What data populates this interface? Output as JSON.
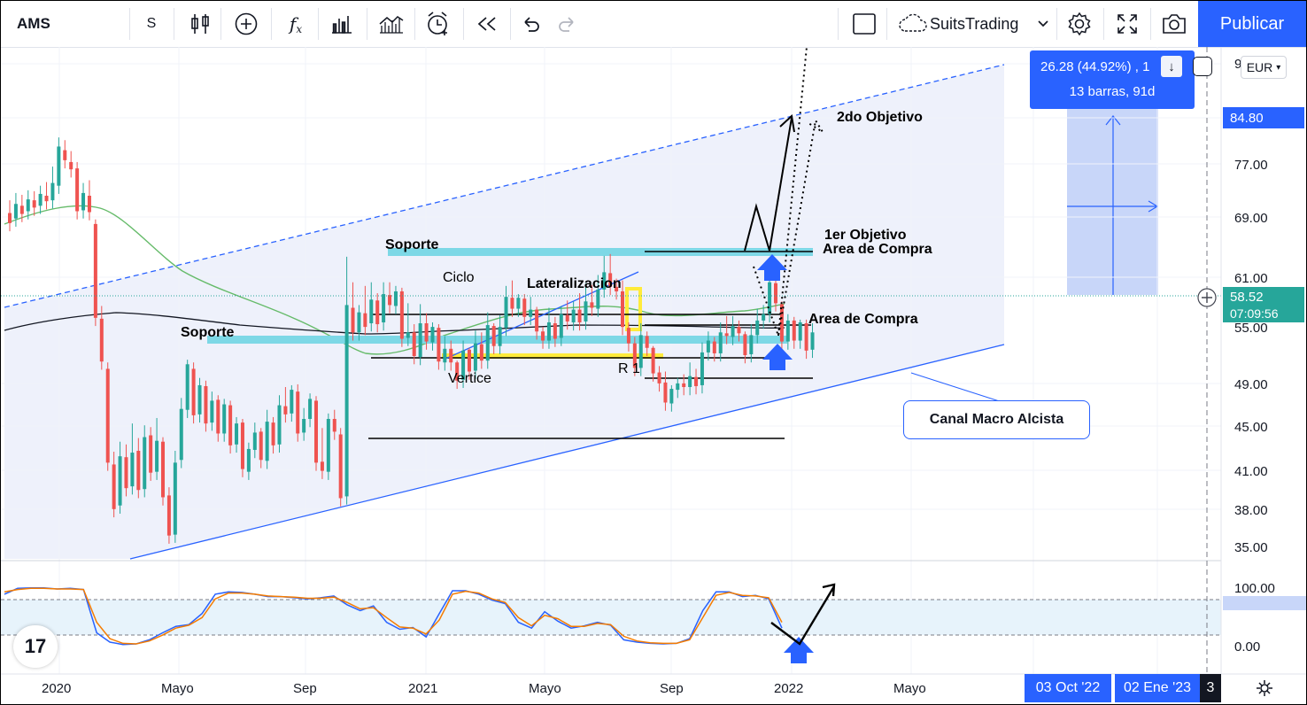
{
  "toolbar": {
    "symbol": "AMS",
    "resolution": "S",
    "brand": "SuitsTrading",
    "publish_label": "Publicar",
    "icons": [
      "bar-style-icon",
      "add-symbol-icon",
      "indicators-icon",
      "templates-icon",
      "compare-icon",
      "alert-icon",
      "replay-icon",
      "undo-icon",
      "redo-icon",
      "layout-icon",
      "cloud-icon",
      "settings-icon",
      "fullscreen-icon",
      "snapshot-icon"
    ]
  },
  "measure": {
    "line1": "26.28 (44.92%) , 1",
    "line2": "13 barras, 91d"
  },
  "currency": "EUR",
  "price_axis": {
    "ticks": [
      "9",
      "77.00",
      "69.00",
      "61.00",
      "55.00",
      "49.00",
      "45.00",
      "41.00",
      "38.00",
      "35.00"
    ],
    "target_tag": "84.80",
    "last_price": "58.52",
    "countdown": "07:09:56"
  },
  "osc_axis": {
    "ticks": [
      "100.00",
      "0.00"
    ]
  },
  "time_axis": {
    "ticks": [
      "2020",
      "Mayo",
      "Sep",
      "2021",
      "Mayo",
      "Sep",
      "2022",
      "Mayo"
    ],
    "range_start": "03 Oct '22",
    "range_end": "02 Ene '23",
    "range_tail": "3"
  },
  "annotations": {
    "objetivo2": "2do Objetivo",
    "objetivo1": "1er Objetivo",
    "area_compra_1": "Area de Compra",
    "area_compra_2": "Area de Compra",
    "soporte_1": "Soporte",
    "soporte_2": "Soporte",
    "ciclo": "Ciclo",
    "lateralizacion": "Lateralizacion",
    "vertice": "Vertice",
    "r1": "R 1",
    "canal": "Canal Macro Alcista"
  },
  "logo": "17",
  "colors": {
    "up": "#26a69a",
    "down": "#ef5350",
    "accent": "#2962ff",
    "band": "#7dd8e6",
    "yellow": "#ffeb3b",
    "ma_green": "#66bb6a"
  },
  "chart_data": {
    "type": "candlestick",
    "ylim": [
      33,
      95
    ],
    "candles": [
      [
        71.6,
        70.5,
        73.0
      ],
      [
        71.0,
        72.6,
        73.8
      ],
      [
        72.4,
        71.5,
        73.6
      ],
      [
        71.8,
        73.1,
        74.1
      ],
      [
        73.0,
        72.2,
        74.0
      ],
      [
        72.4,
        73.7,
        74.6
      ],
      [
        73.5,
        72.9,
        75.0
      ],
      [
        73.0,
        74.9,
        76.7
      ],
      [
        74.6,
        78.9,
        79.9
      ],
      [
        78.5,
        77.4,
        79.6
      ],
      [
        77.2,
        76.4,
        78.4
      ],
      [
        76.5,
        71.8,
        77.2
      ],
      [
        71.9,
        73.8,
        74.9
      ],
      [
        73.5,
        71.7,
        75.2
      ],
      [
        70.4,
        60.1,
        70.9
      ],
      [
        60.0,
        55.3,
        61.4
      ],
      [
        54.5,
        44.2,
        55.2
      ],
      [
        44.0,
        39.1,
        45.4
      ],
      [
        39.5,
        44.9,
        46.5
      ],
      [
        44.8,
        41.4,
        46.2
      ],
      [
        41.6,
        45.3,
        48.5
      ],
      [
        45.5,
        41.2,
        46.9
      ],
      [
        41.3,
        47.0,
        48.3
      ],
      [
        47.2,
        43.1,
        48.1
      ],
      [
        43.2,
        46.6,
        49.1
      ],
      [
        46.5,
        40.4,
        47.0
      ],
      [
        40.6,
        36.2,
        41.5
      ],
      [
        36.3,
        44.2,
        45.5
      ],
      [
        44.5,
        50.1,
        51.3
      ],
      [
        50.0,
        55.0,
        55.5
      ],
      [
        54.5,
        49.4,
        55.2
      ],
      [
        49.5,
        52.7,
        53.5
      ],
      [
        52.6,
        48.5,
        53.2
      ],
      [
        48.6,
        51.0,
        52.0
      ],
      [
        51.1,
        47.4,
        51.6
      ],
      [
        47.4,
        50.6,
        51.2
      ],
      [
        50.5,
        46.1,
        51.0
      ],
      [
        46.2,
        48.5,
        49.2
      ],
      [
        48.6,
        43.5,
        49.0
      ],
      [
        43.2,
        45.7,
        46.4
      ],
      [
        45.6,
        47.5,
        48.6
      ],
      [
        47.6,
        44.5,
        48.0
      ],
      [
        44.4,
        48.7,
        50.0
      ],
      [
        48.6,
        46.1,
        49.2
      ],
      [
        46.2,
        50.5,
        51.6
      ],
      [
        50.4,
        49.5,
        52.5
      ],
      [
        49.6,
        52.2,
        52.7
      ],
      [
        52.0,
        47.4,
        52.8
      ],
      [
        47.5,
        49.0,
        50.2
      ],
      [
        49.0,
        51.2,
        51.8
      ],
      [
        51.0,
        44.2,
        51.5
      ],
      [
        44.3,
        43.3,
        48.0
      ],
      [
        43.2,
        49.0,
        49.6
      ],
      [
        49.0,
        47.6,
        50.0
      ],
      [
        47.3,
        40.3,
        48.0
      ],
      [
        40.5,
        61.5,
        66.8
      ],
      [
        61.2,
        58.5,
        64.0
      ],
      [
        58.5,
        60.7,
        61.5
      ],
      [
        60.6,
        59.1,
        63.6
      ],
      [
        59.5,
        62.1,
        64.0
      ],
      [
        62.0,
        59.4,
        62.8
      ],
      [
        59.6,
        62.7,
        64.0
      ],
      [
        62.6,
        61.5,
        64.0
      ],
      [
        61.4,
        63.0,
        63.6
      ],
      [
        63.0,
        57.8,
        63.4
      ],
      [
        57.9,
        58.5,
        61.7
      ],
      [
        58.5,
        55.9,
        59.4
      ],
      [
        55.8,
        59.5,
        61.6
      ],
      [
        59.5,
        57.5,
        60.6
      ],
      [
        57.4,
        59.1,
        59.6
      ],
      [
        59.0,
        55.3,
        59.4
      ],
      [
        55.2,
        56.7,
        58.1
      ],
      [
        56.7,
        55.2,
        57.6
      ],
      [
        55.2,
        53.2,
        55.4
      ],
      [
        53.3,
        56.5,
        57.6
      ],
      [
        56.6,
        54.2,
        56.8
      ],
      [
        54.3,
        57.3,
        58.7
      ],
      [
        57.2,
        55.4,
        58.5
      ],
      [
        55.4,
        59.3,
        60.7
      ],
      [
        59.2,
        57.0,
        59.5
      ],
      [
        57.0,
        59.1,
        60.4
      ],
      [
        59.0,
        62.4,
        63.6
      ],
      [
        62.3,
        61.1,
        64.2
      ],
      [
        61.1,
        62.3,
        62.7
      ],
      [
        62.2,
        60.2,
        62.7
      ],
      [
        60.2,
        61.0,
        62.4
      ],
      [
        61.0,
        58.6,
        61.3
      ],
      [
        58.6,
        57.6,
        59.1
      ],
      [
        57.6,
        59.6,
        61.2
      ],
      [
        59.5,
        57.8,
        60.2
      ],
      [
        57.9,
        60.5,
        61.4
      ],
      [
        60.4,
        59.7,
        62.0
      ],
      [
        59.6,
        61.0,
        61.9
      ],
      [
        61.0,
        59.6,
        62.8
      ],
      [
        59.7,
        61.9,
        63.9
      ],
      [
        61.8,
        61.2,
        63.7
      ],
      [
        61.1,
        63.2,
        64.8
      ],
      [
        63.2,
        65.1,
        66.9
      ],
      [
        65.0,
        63.5,
        67.1
      ],
      [
        63.5,
        63.0,
        64.4
      ],
      [
        63.0,
        59.1,
        64.2
      ],
      [
        59.0,
        57.3,
        59.6
      ],
      [
        57.3,
        54.6,
        58.0
      ],
      [
        54.6,
        58.2,
        59.5
      ],
      [
        58.1,
        56.8,
        58.6
      ],
      [
        56.8,
        54.0,
        57.0
      ],
      [
        54.1,
        52.9,
        54.8
      ],
      [
        53.0,
        50.8,
        54.2
      ],
      [
        50.7,
        52.3,
        52.7
      ],
      [
        52.2,
        52.9,
        53.5
      ],
      [
        52.9,
        52.5,
        53.9
      ],
      [
        52.5,
        53.7,
        55.2
      ],
      [
        53.6,
        52.6,
        54.5
      ],
      [
        52.7,
        56.3,
        57.4
      ],
      [
        56.3,
        57.6,
        58.6
      ],
      [
        57.5,
        56.2,
        58.0
      ],
      [
        56.2,
        58.5,
        59.6
      ],
      [
        58.4,
        58.1,
        60.3
      ],
      [
        58.0,
        59.2,
        60.3
      ],
      [
        59.1,
        58.4,
        59.8
      ],
      [
        58.3,
        56.0,
        58.6
      ],
      [
        56.1,
        58.2,
        59.4
      ],
      [
        58.2,
        59.8,
        61.1
      ],
      [
        59.8,
        60.5,
        61.5
      ],
      [
        60.5,
        64.0,
        64.9
      ],
      [
        63.9,
        61.7,
        64.4
      ],
      [
        61.6,
        57.5,
        61.9
      ],
      [
        57.5,
        59.8,
        60.5
      ],
      [
        59.8,
        57.6,
        60.2
      ],
      [
        57.6,
        59.6,
        59.9
      ],
      [
        59.5,
        56.5,
        59.9
      ],
      [
        56.6,
        58.5,
        59.5
      ]
    ],
    "oscillator": {
      "name": "stochastic",
      "ylim": [
        0,
        100
      ]
    },
    "price_tags": {
      "target": 84.8,
      "last": 58.52
    }
  }
}
